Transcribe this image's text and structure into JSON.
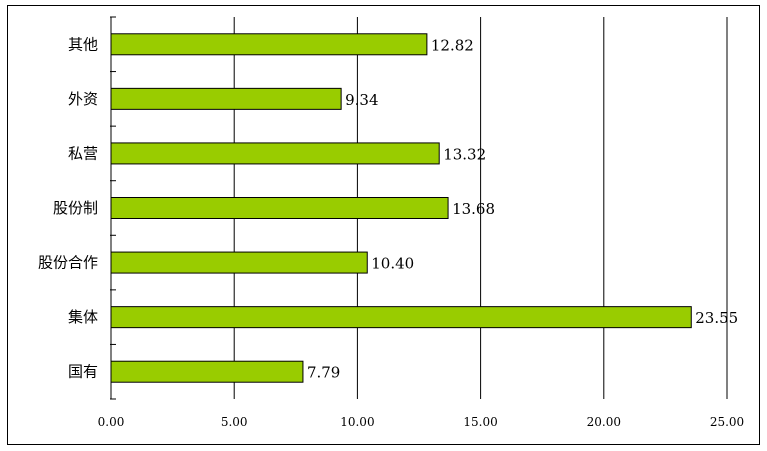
{
  "chart_data": {
    "type": "bar",
    "orientation": "horizontal",
    "categories": [
      "国有",
      "集体",
      "股份合作",
      "股份制",
      "私营",
      "外资",
      "其他"
    ],
    "values": [
      7.79,
      23.55,
      10.4,
      13.68,
      13.32,
      9.34,
      12.82
    ],
    "value_labels": [
      "7.79",
      "23.55",
      "10.40",
      "13.68",
      "13.32",
      "9.34",
      "12.82"
    ],
    "xlim": [
      0,
      25
    ],
    "x_ticks": [
      "0.00",
      "5.00",
      "10.00",
      "15.00",
      "20.00",
      "25.00"
    ],
    "grid": "vertical",
    "bar_color": "#99cc00",
    "bar_edge_color": "#000000",
    "title": "",
    "xlabel": "",
    "ylabel": ""
  }
}
